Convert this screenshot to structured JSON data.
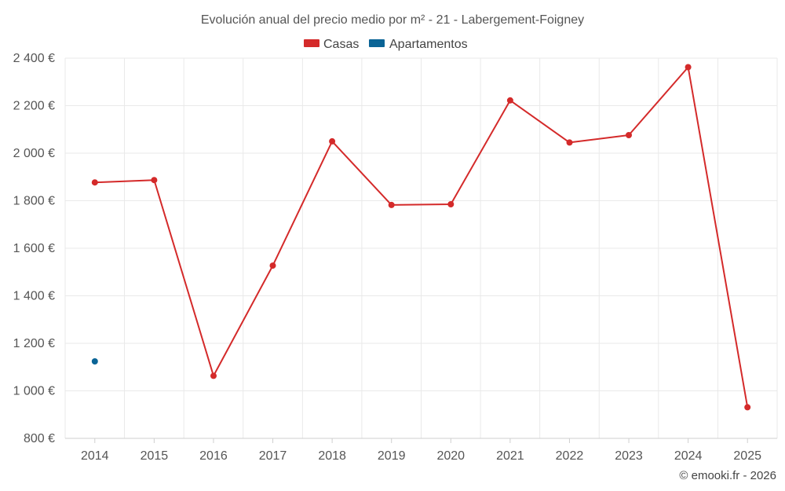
{
  "chart_data": {
    "type": "line",
    "title": "Evolución anual del precio medio por m² - 21 - Labergement-Foigney",
    "categories": [
      "2014",
      "2015",
      "2016",
      "2017",
      "2018",
      "2019",
      "2020",
      "2021",
      "2022",
      "2023",
      "2024",
      "2025"
    ],
    "series": [
      {
        "name": "Casas",
        "color": "#d42a2a",
        "values": [
          1877,
          1887,
          1063,
          1527,
          2050,
          1782,
          1785,
          2222,
          2045,
          2076,
          2362,
          931
        ]
      },
      {
        "name": "Apartamentos",
        "color": "#0a6496",
        "values": [
          1124,
          null,
          null,
          null,
          null,
          null,
          null,
          null,
          null,
          null,
          null,
          null
        ]
      }
    ],
    "y_ticks": [
      "800 €",
      "1 000 €",
      "1 200 €",
      "1 400 €",
      "1 600 €",
      "1 800 €",
      "2 000 €",
      "2 200 €",
      "2 400 €"
    ],
    "ylim": [
      800,
      2400
    ],
    "grid": true,
    "legend_position": "top-center"
  },
  "credit": "© emooki.fr - 2026"
}
